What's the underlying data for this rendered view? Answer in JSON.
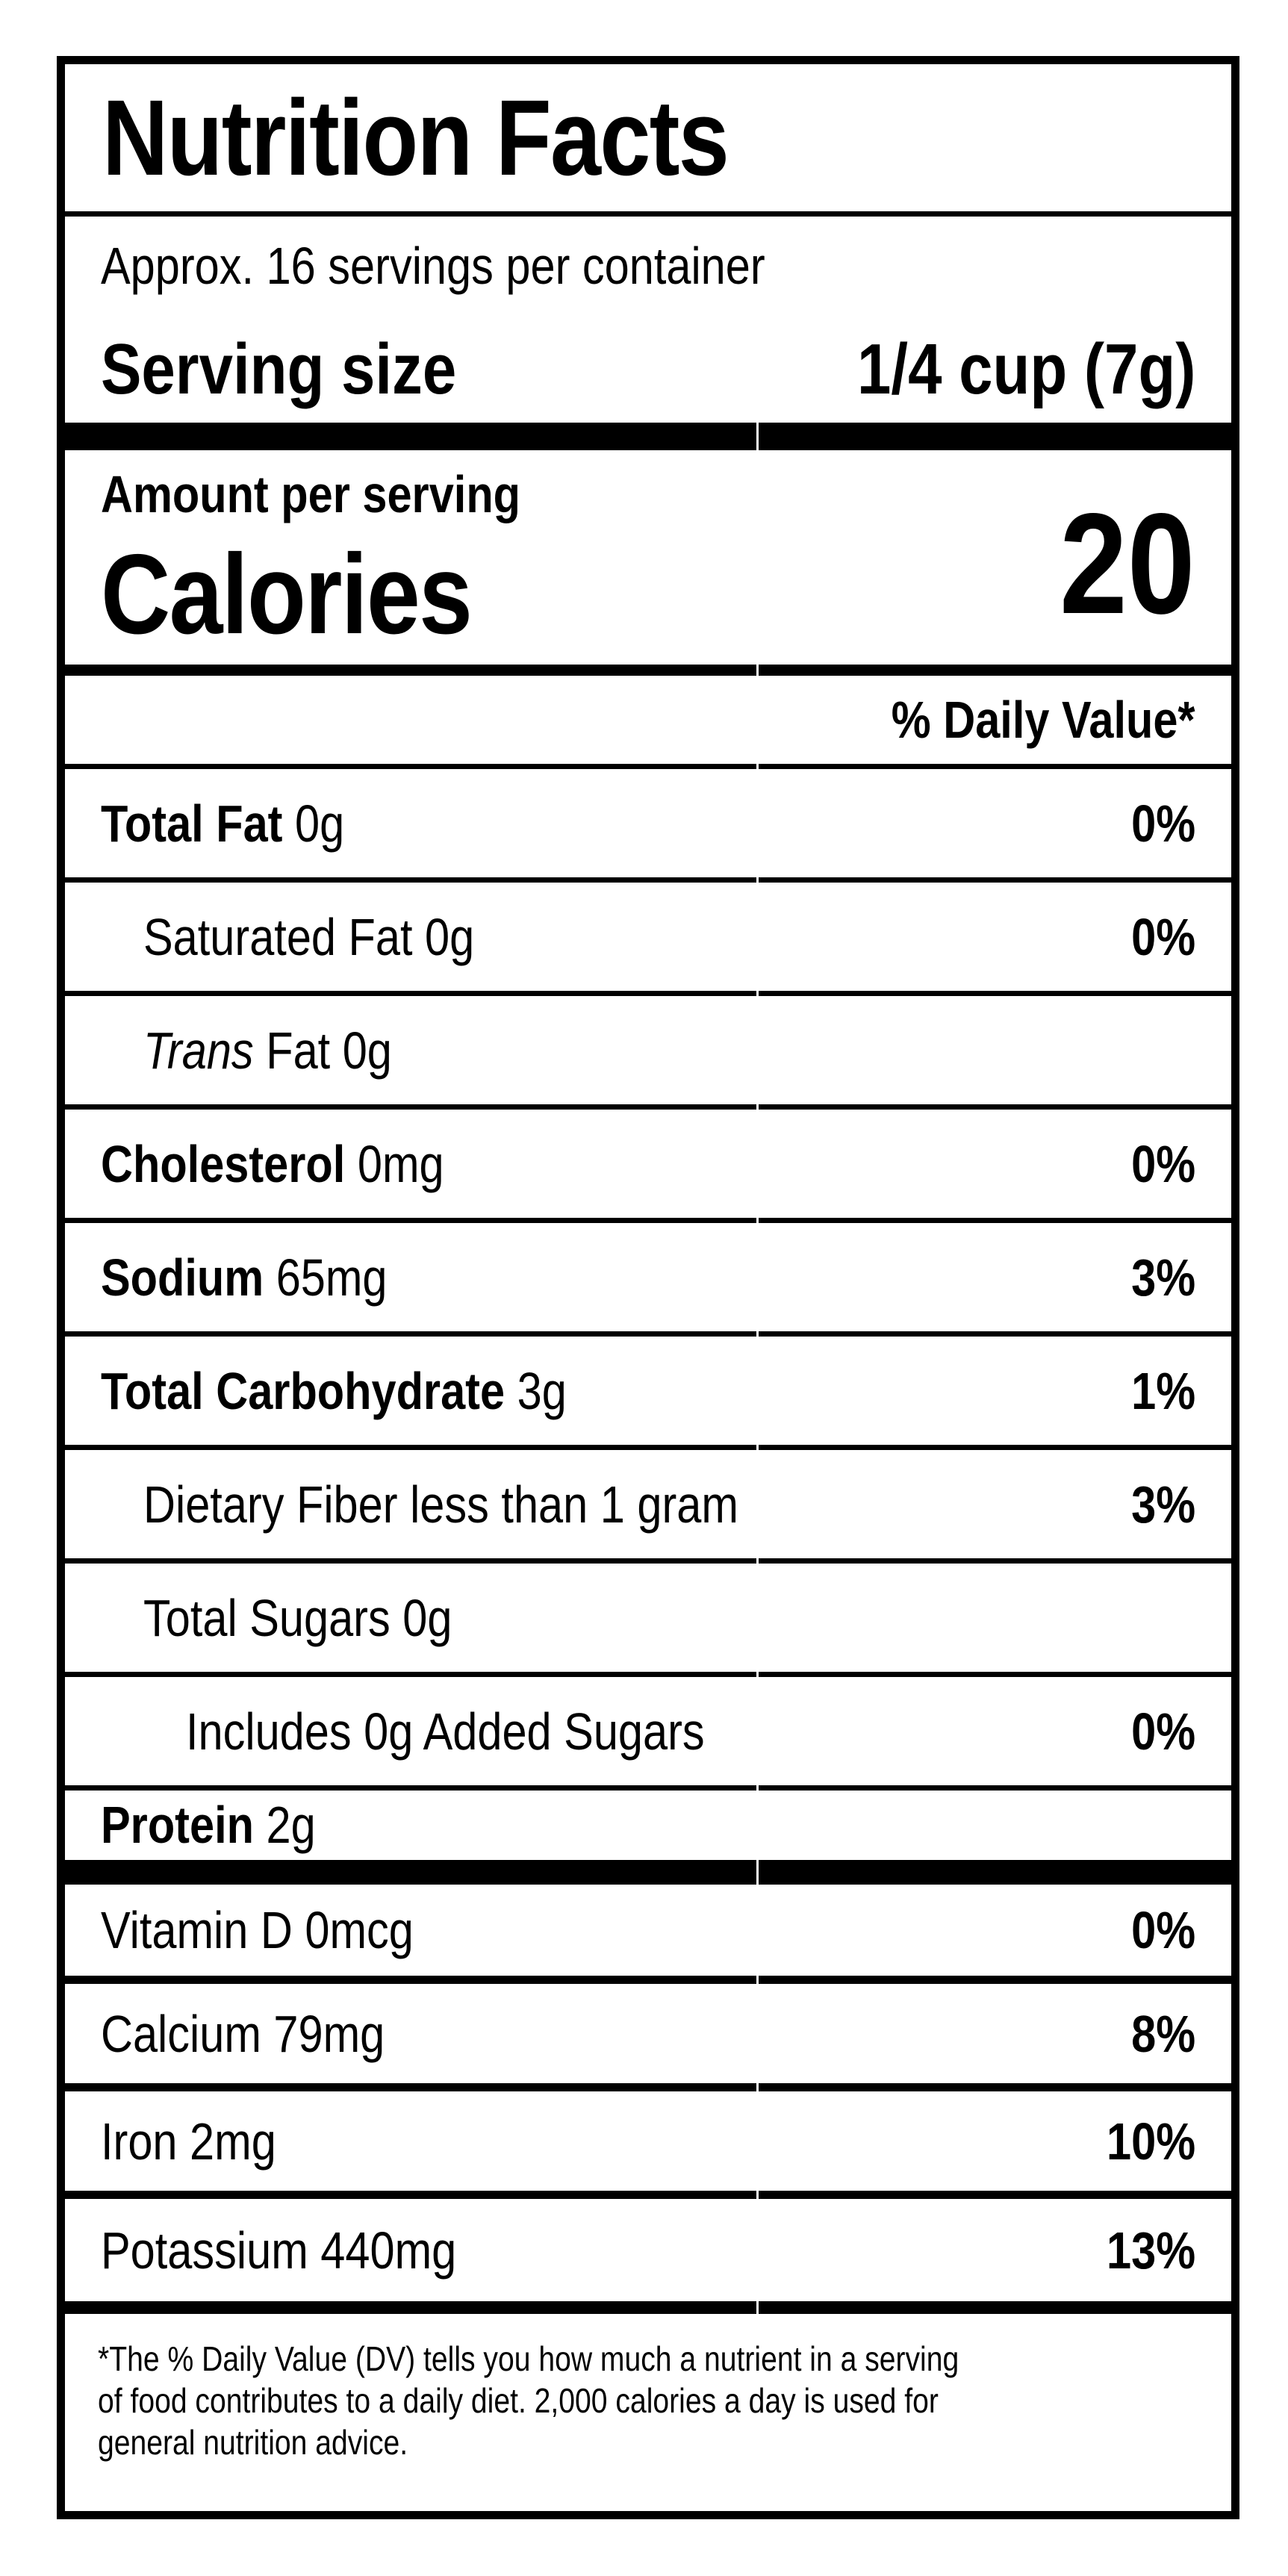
{
  "label": {
    "title": "Nutrition Facts",
    "servings_per_container": "Approx. 16 servings per container",
    "serving_size_label": "Serving size",
    "serving_size_value": "1/4 cup (7g)",
    "amount_per_serving": "Amount per serving",
    "calories_label": "Calories",
    "calories_value": "20",
    "daily_value_header": "% Daily Value*",
    "rows": [
      {
        "bold": "Total Fat",
        "text": " 0g",
        "dv": "0%"
      },
      {
        "text": "Saturated Fat 0g",
        "dv": "0%"
      },
      {
        "italic": "Trans",
        "text": " Fat 0g",
        "dv": ""
      },
      {
        "bold": "Cholesterol",
        "text": " 0mg",
        "dv": "0%"
      },
      {
        "bold": "Sodium",
        "text": " 65mg",
        "dv": "3%"
      },
      {
        "bold": "Total Carbohydrate",
        "text": " 3g",
        "dv": "1%"
      },
      {
        "text": "Dietary Fiber less than 1 gram",
        "dv": "3%"
      },
      {
        "text": "Total Sugars 0g",
        "dv": ""
      },
      {
        "text": "Includes 0g Added Sugars",
        "dv": "0%"
      }
    ],
    "protein": {
      "bold": "Protein",
      "text": " 2g",
      "dv": ""
    },
    "vitamins": [
      {
        "text": "Vitamin D 0mcg",
        "dv": "0%"
      },
      {
        "text": "Calcium 79mg",
        "dv": "8%"
      },
      {
        "text": "Iron 2mg",
        "dv": "10%"
      },
      {
        "text": "Potassium 440mg",
        "dv": "13%"
      }
    ],
    "footnote_lines": [
      "*The % Daily Value (DV) tells you how much a nutrient in a serving",
      "of food contributes to a daily diet. 2,000 calories a day is used for",
      "general nutrition advice."
    ]
  },
  "colors": {
    "ink": "#000000",
    "paper": "#ffffff"
  }
}
